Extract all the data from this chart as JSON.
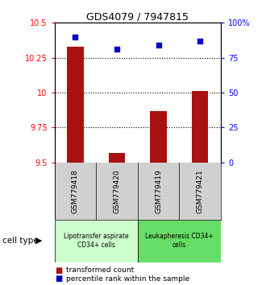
{
  "title": "GDS4079 / 7947815",
  "samples": [
    "GSM779418",
    "GSM779420",
    "GSM779419",
    "GSM779421"
  ],
  "red_values": [
    10.33,
    9.57,
    9.87,
    10.01
  ],
  "blue_values": [
    90,
    81,
    84,
    87
  ],
  "ylim_left": [
    9.5,
    10.5
  ],
  "ylim_right": [
    0,
    100
  ],
  "yticks_left": [
    9.5,
    9.75,
    10.0,
    10.25,
    10.5
  ],
  "yticks_left_labels": [
    "9.5",
    "9.75",
    "10",
    "10.25",
    "10.5"
  ],
  "yticks_right": [
    0,
    25,
    50,
    75,
    100
  ],
  "yticks_right_labels": [
    "0",
    "25",
    "50",
    "75",
    "100%"
  ],
  "bar_color": "#aa1111",
  "dot_color": "#0000cc",
  "grid_lines": [
    9.75,
    10.0,
    10.25
  ],
  "cell_types": [
    {
      "label": "Lipotransfer aspirate\nCD34+ cells",
      "color": "#ccffcc",
      "samples": [
        0,
        1
      ]
    },
    {
      "label": "Leukapheresis CD34+\ncells",
      "color": "#66dd66",
      "samples": [
        2,
        3
      ]
    }
  ],
  "cell_type_label": "cell type",
  "legend_red": "transformed count",
  "legend_blue": "percentile rank within the sample",
  "background_plot": "#ffffff",
  "background_sample_row": "#d0d0d0"
}
